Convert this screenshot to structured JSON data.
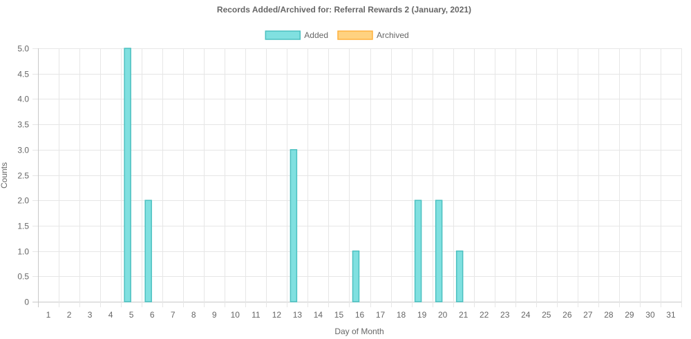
{
  "chart_data": {
    "type": "bar",
    "title": "Records Added/Archived for: Referral Rewards 2 (January, 2021)",
    "xlabel": "Day of Month",
    "ylabel": "Counts",
    "categories": [
      "1",
      "2",
      "3",
      "4",
      "5",
      "6",
      "7",
      "8",
      "9",
      "10",
      "11",
      "12",
      "13",
      "14",
      "15",
      "16",
      "17",
      "18",
      "19",
      "20",
      "21",
      "22",
      "23",
      "24",
      "25",
      "26",
      "27",
      "28",
      "29",
      "30",
      "31"
    ],
    "series": [
      {
        "name": "Added",
        "color": "#4bc0c0",
        "fill": "#80e0e0",
        "values": [
          0,
          0,
          0,
          0,
          5,
          2,
          0,
          0,
          0,
          0,
          0,
          0,
          3,
          0,
          0,
          1,
          0,
          0,
          2,
          2,
          1,
          0,
          0,
          0,
          0,
          0,
          0,
          0,
          0,
          0,
          0
        ]
      },
      {
        "name": "Archived",
        "color": "#ffb13d",
        "fill": "#ffd280",
        "values": [
          0,
          0,
          0,
          0,
          0,
          0,
          0,
          0,
          0,
          0,
          0,
          0,
          0,
          0,
          0,
          0,
          0,
          0,
          0,
          0,
          0,
          0,
          0,
          0,
          0,
          0,
          0,
          0,
          0,
          0,
          0
        ]
      }
    ],
    "ylim": [
      0,
      5
    ],
    "yticks": [
      "0",
      "0.5",
      "1.0",
      "1.5",
      "2.0",
      "2.5",
      "3.0",
      "3.5",
      "4.0",
      "4.5",
      "5.0"
    ],
    "grid": true,
    "legend_position": "top-center"
  }
}
